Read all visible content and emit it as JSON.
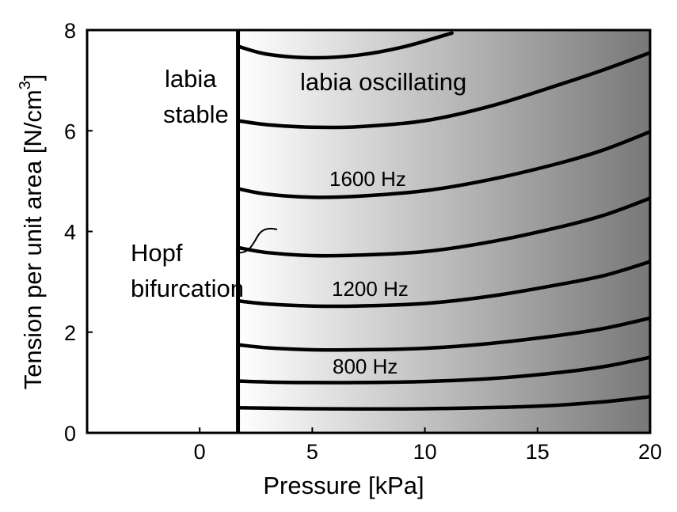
{
  "chart_data": {
    "type": "line",
    "xlabel": "Pressure [kPa]",
    "ylabel": "Tension per unit area [N/cm",
    "ylabel_superscript": "3",
    "ylabel_close": "]",
    "xlim": [
      -5,
      20
    ],
    "ylim": [
      0,
      8
    ],
    "x_ticks": [
      {
        "value": 0,
        "label": "0"
      },
      {
        "value": 5,
        "label": "5"
      },
      {
        "value": 10,
        "label": "10"
      },
      {
        "value": 15,
        "label": "15"
      },
      {
        "value": 20,
        "label": "20"
      }
    ],
    "y_ticks": [
      {
        "value": 0,
        "label": "0"
      },
      {
        "value": 2,
        "label": "2"
      },
      {
        "value": 4,
        "label": "4"
      },
      {
        "value": 6,
        "label": "6"
      },
      {
        "value": 8,
        "label": "8"
      }
    ],
    "hopf_boundary_x": 1.7,
    "gradient": {
      "start_x": 1.7,
      "end_x": 20,
      "start_color": "#ffffff",
      "end_color": "#787878"
    },
    "annotations": {
      "stable_line1": "labia",
      "stable_line2": "stable",
      "oscillating": "labia oscillating",
      "hopf_line1": "Hopf",
      "hopf_line2": "bifurcation",
      "freq_1600": "1600 Hz",
      "freq_1200": "1200 Hz",
      "freq_800": "800 Hz"
    },
    "series": [
      {
        "x": [
          1.7,
          3,
          5,
          7,
          9,
          11.2
        ],
        "y": [
          7.68,
          7.52,
          7.45,
          7.5,
          7.66,
          7.94
        ]
      },
      {
        "x": [
          1.7,
          3,
          5,
          7,
          10,
          13,
          16,
          18,
          20
        ],
        "y": [
          6.2,
          6.12,
          6.07,
          6.08,
          6.2,
          6.5,
          6.92,
          7.22,
          7.55
        ]
      },
      {
        "x": [
          1.7,
          3,
          5,
          7,
          10,
          13,
          16,
          18,
          20
        ],
        "y": [
          4.85,
          4.74,
          4.68,
          4.7,
          4.81,
          5.04,
          5.36,
          5.63,
          5.98
        ]
      },
      {
        "x": [
          1.7,
          3,
          5,
          7,
          10,
          13,
          16,
          18,
          20
        ],
        "y": [
          3.68,
          3.58,
          3.52,
          3.53,
          3.6,
          3.8,
          4.09,
          4.33,
          4.66
        ]
      },
      {
        "x": [
          1.7,
          3,
          5,
          7,
          10,
          13,
          16,
          18,
          20
        ],
        "y": [
          2.62,
          2.56,
          2.52,
          2.52,
          2.57,
          2.72,
          2.95,
          3.13,
          3.4
        ]
      },
      {
        "x": [
          1.7,
          3,
          5,
          7,
          10,
          13,
          16,
          18,
          20
        ],
        "y": [
          1.75,
          1.69,
          1.65,
          1.65,
          1.68,
          1.78,
          1.94,
          2.08,
          2.28
        ]
      },
      {
        "x": [
          1.7,
          3,
          5,
          7,
          10,
          13,
          16,
          18,
          20
        ],
        "y": [
          1.03,
          1.01,
          1,
          1,
          1.02,
          1.08,
          1.2,
          1.32,
          1.5
        ]
      },
      {
        "x": [
          1.7,
          5,
          10,
          15,
          18,
          20
        ],
        "y": [
          0.5,
          0.48,
          0.48,
          0.53,
          0.62,
          0.72
        ]
      }
    ]
  }
}
